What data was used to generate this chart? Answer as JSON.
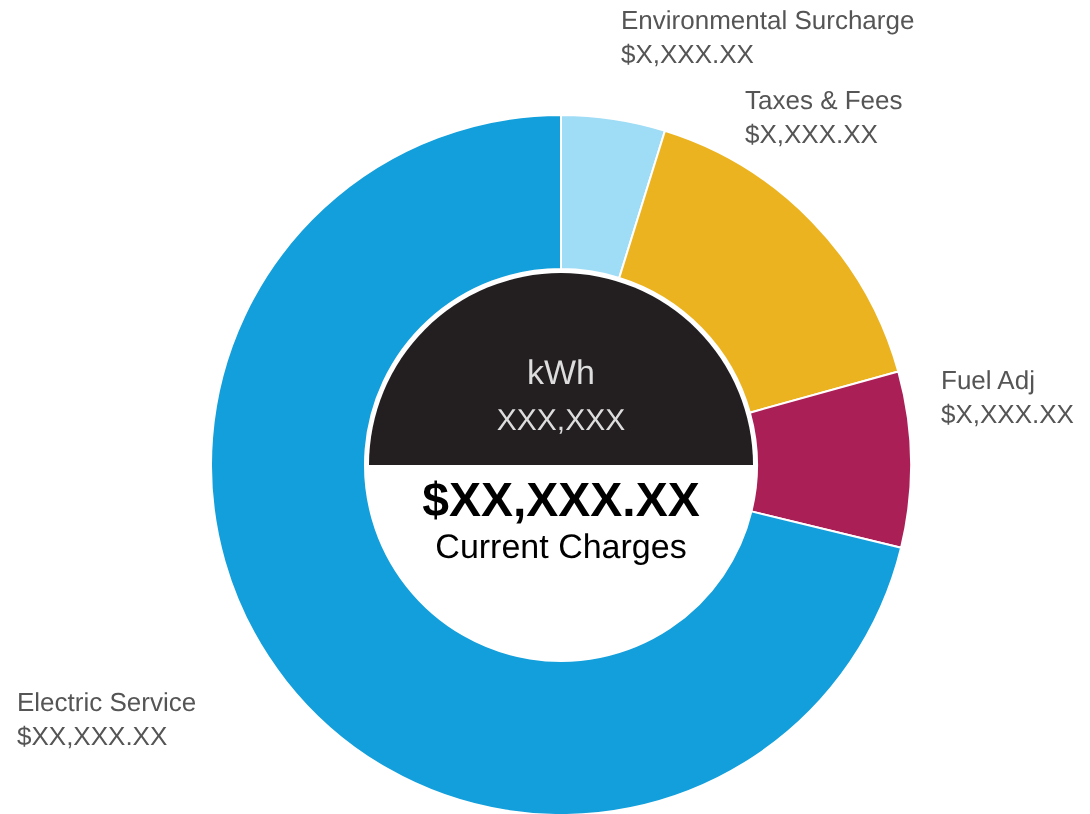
{
  "chart_data": {
    "type": "donut",
    "categories": [
      "Environmental Surcharge",
      "Taxes & Fees",
      "Fuel Adj",
      "Electric Service"
    ],
    "values": [
      4.8,
      15.9,
      8.1,
      71.2
    ],
    "colors": [
      "#9fdcf5",
      "#ecb321",
      "#ab1f57",
      "#129fdb"
    ],
    "value_labels": [
      "$X,XXX.XX",
      "$X,XXX.XX",
      "$X,XXX.XX",
      "$XX,XXX.XX"
    ],
    "annotations": [
      "kWh",
      "XXX,XXX",
      "$XX,XXX.XX",
      "Current Charges"
    ],
    "legend": false
  }
}
